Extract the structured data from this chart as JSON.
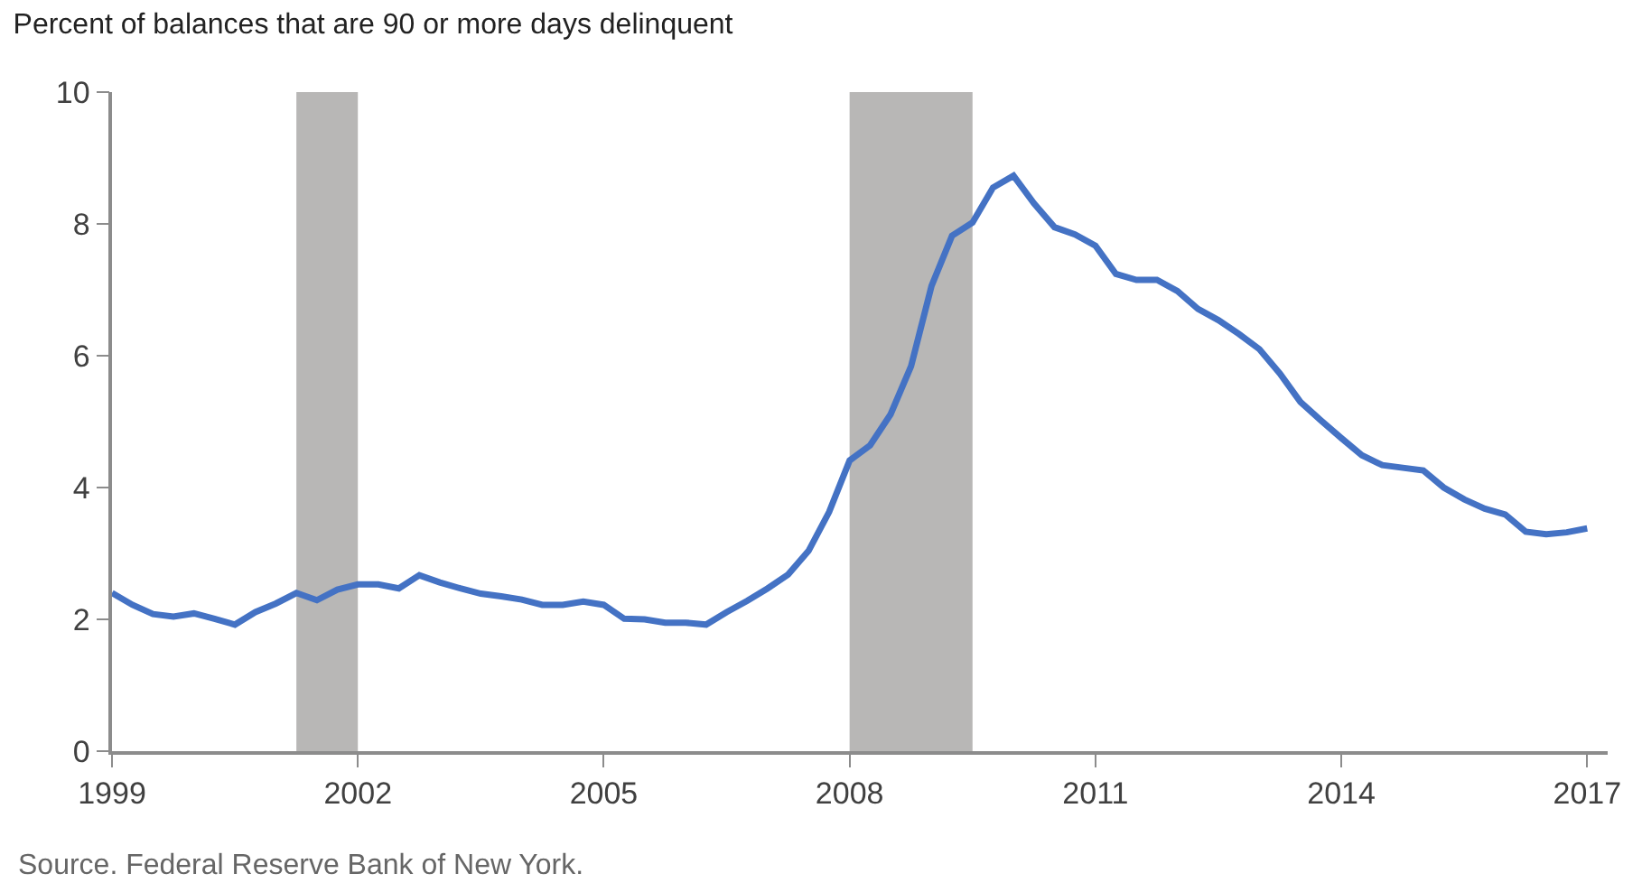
{
  "chart_data": {
    "type": "line",
    "title": "Percent of balances that are 90 or more days delinquent",
    "annotations": [
      "Source. Federal Reserve Bank of New York."
    ],
    "x": [
      1999.0,
      1999.25,
      1999.5,
      1999.75,
      2000.0,
      2000.25,
      2000.5,
      2000.75,
      2001.0,
      2001.25,
      2001.5,
      2001.75,
      2002.0,
      2002.25,
      2002.5,
      2002.75,
      2003.0,
      2003.25,
      2003.5,
      2003.75,
      2004.0,
      2004.25,
      2004.5,
      2004.75,
      2005.0,
      2005.25,
      2005.5,
      2005.75,
      2006.0,
      2006.25,
      2006.5,
      2006.75,
      2007.0,
      2007.25,
      2007.5,
      2007.75,
      2008.0,
      2008.25,
      2008.5,
      2008.75,
      2009.0,
      2009.25,
      2009.5,
      2009.75,
      2010.0,
      2010.25,
      2010.5,
      2010.75,
      2011.0,
      2011.25,
      2011.5,
      2011.75,
      2012.0,
      2012.25,
      2012.5,
      2012.75,
      2013.0,
      2013.25,
      2013.5,
      2013.75,
      2014.0,
      2014.25,
      2014.5,
      2014.75,
      2015.0,
      2015.25,
      2015.5,
      2015.75,
      2016.0,
      2016.25,
      2016.5,
      2016.75,
      2017.0
    ],
    "series": [
      {
        "color": "#4472c4",
        "values": [
          2.4,
          2.22,
          2.08,
          2.04,
          2.09,
          2.01,
          1.92,
          2.11,
          2.24,
          2.4,
          2.29,
          2.45,
          2.53,
          2.53,
          2.47,
          2.67,
          2.56,
          2.47,
          2.39,
          2.35,
          2.3,
          2.22,
          2.22,
          2.27,
          2.22,
          2.01,
          2.0,
          1.95,
          1.95,
          1.92,
          2.11,
          2.28,
          2.47,
          2.68,
          3.04,
          3.63,
          4.41,
          4.64,
          5.11,
          5.84,
          7.06,
          7.82,
          8.02,
          8.55,
          8.73,
          8.31,
          7.95,
          7.84,
          7.67,
          7.24,
          7.15,
          7.15,
          6.98,
          6.71,
          6.54,
          6.33,
          6.1,
          5.73,
          5.3,
          5.02,
          4.75,
          4.49,
          4.34,
          4.3,
          4.26,
          4.0,
          3.82,
          3.68,
          3.59,
          3.33,
          3.29,
          3.32,
          3.38
        ]
      }
    ],
    "bands": [
      {
        "axis": "x",
        "from": 2001.25,
        "to": 2002.0,
        "color": "#b8b7b6"
      },
      {
        "axis": "x",
        "from": 2008.0,
        "to": 2009.5,
        "color": "#b8b7b6"
      }
    ],
    "xlim": [
      1999,
      2017.25
    ],
    "xticks": [
      1999,
      2002,
      2005,
      2008,
      2011,
      2014,
      2017
    ],
    "ylim": [
      0,
      10
    ],
    "yticks": [
      0,
      2,
      4,
      6,
      8,
      10
    ],
    "grid": false,
    "marker": "none",
    "line_style": "solid"
  }
}
